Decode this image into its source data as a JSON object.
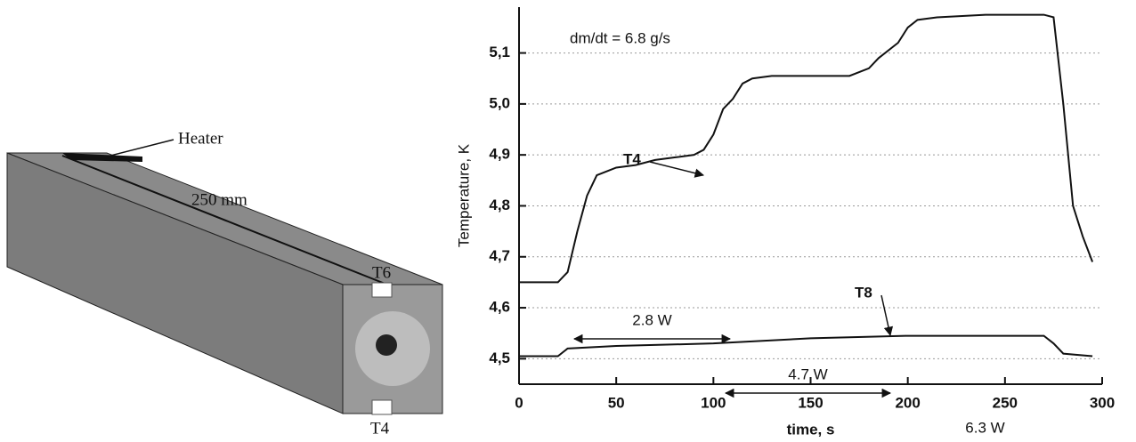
{
  "diagram": {
    "heater_label": "Heater",
    "length_label": "250 mm",
    "top_sensor_label": "T6",
    "bottom_sensor_label": "T4"
  },
  "chart_data": {
    "type": "line",
    "annotation": "dm/dt = 6.8 g/s",
    "power_labels": [
      "2.8 W",
      "4.7 W",
      "6.3 W"
    ],
    "x_label": "time, s",
    "y_label": "Temperature, K",
    "xlim": [
      0,
      300
    ],
    "xticks": [
      0,
      50,
      100,
      150,
      200,
      250,
      300
    ],
    "ylim": [
      4.45,
      5.19
    ],
    "yticks": [
      {
        "value": 4.5,
        "label": "4,5"
      },
      {
        "value": 4.6,
        "label": "4,6"
      },
      {
        "value": 4.7,
        "label": "4,7"
      },
      {
        "value": 4.8,
        "label": "4,8"
      },
      {
        "value": 4.9,
        "label": "4,9"
      },
      {
        "value": 5.0,
        "label": "5,0"
      },
      {
        "value": 5.1,
        "label": "5,1"
      }
    ],
    "grid": true,
    "series": [
      {
        "name": "T4",
        "color": "#111111",
        "x": [
          0,
          20,
          25,
          30,
          35,
          40,
          50,
          60,
          70,
          80,
          90,
          95,
          100,
          105,
          110,
          115,
          120,
          130,
          150,
          170,
          180,
          185,
          195,
          200,
          205,
          215,
          240,
          270,
          275,
          280,
          285,
          290,
          295
        ],
        "values": [
          4.65,
          4.65,
          4.67,
          4.75,
          4.82,
          4.86,
          4.875,
          4.88,
          4.89,
          4.895,
          4.9,
          4.91,
          4.94,
          4.99,
          5.01,
          5.04,
          5.05,
          5.055,
          5.055,
          5.055,
          5.07,
          5.09,
          5.12,
          5.15,
          5.165,
          5.17,
          5.175,
          5.175,
          5.17,
          5.0,
          4.8,
          4.74,
          4.69
        ]
      },
      {
        "name": "T8",
        "color": "#111111",
        "x": [
          0,
          20,
          25,
          50,
          100,
          150,
          200,
          250,
          270,
          275,
          280,
          295
        ],
        "values": [
          4.505,
          4.505,
          4.52,
          4.525,
          4.53,
          4.54,
          4.545,
          4.545,
          4.545,
          4.53,
          4.51,
          4.505
        ]
      }
    ]
  }
}
